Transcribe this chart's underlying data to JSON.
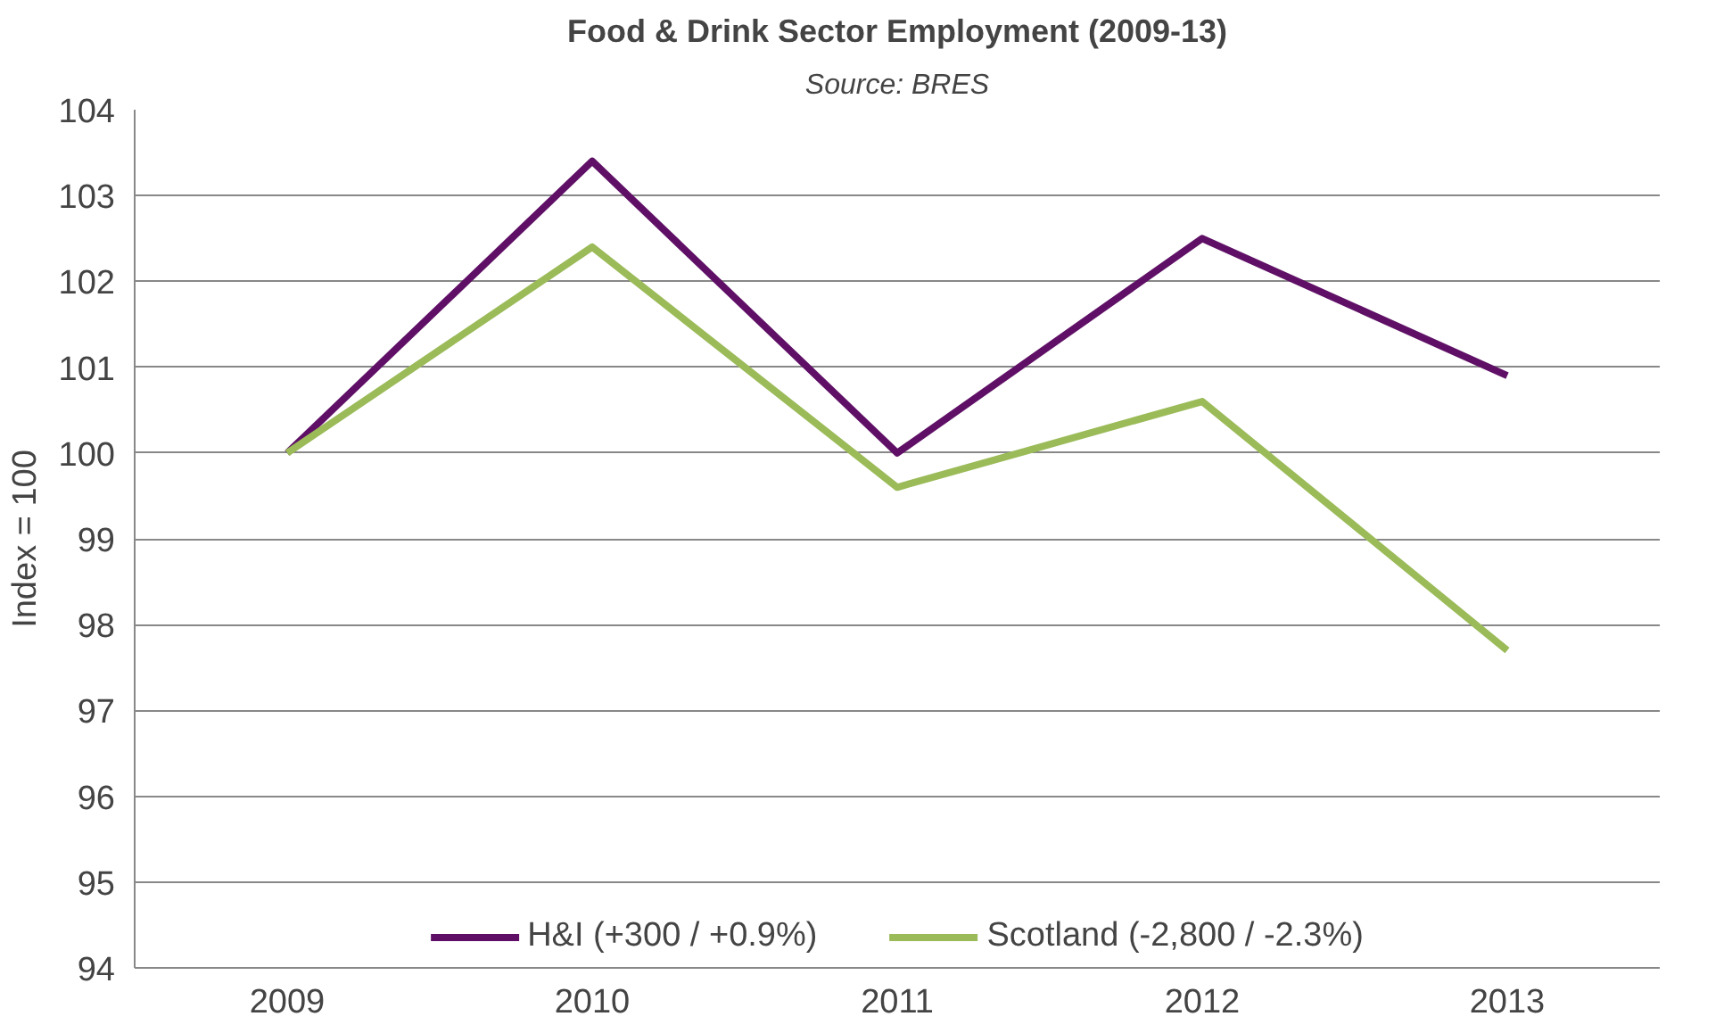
{
  "chart_data": {
    "type": "line",
    "title": "Food & Drink Sector Employment (2009-13)",
    "subtitle": "Source: BRES",
    "ylabel": "Index = 100",
    "categories": [
      "2009",
      "2010",
      "2011",
      "2012",
      "2013"
    ],
    "series": [
      {
        "name": "H&I (+300 / +0.9%)",
        "color": "#5f1066",
        "values": [
          100,
          103.4,
          100.0,
          102.5,
          100.9
        ]
      },
      {
        "name": "Scotland (-2,800 / -2.3%)",
        "color": "#9bbb59",
        "values": [
          100,
          102.4,
          99.6,
          100.6,
          97.7
        ]
      }
    ],
    "ylim": [
      94,
      104
    ],
    "yticks": [
      94,
      95,
      96,
      97,
      98,
      99,
      100,
      101,
      102,
      103,
      104
    ],
    "grid": "y",
    "legend": "bottom",
    "marker": "none",
    "line_style": "solid"
  }
}
